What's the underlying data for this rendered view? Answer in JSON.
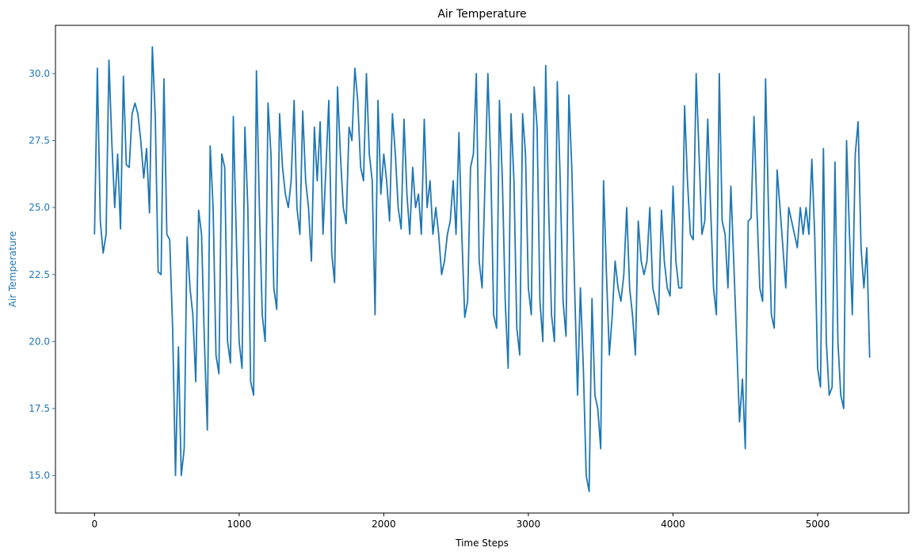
{
  "chart_data": {
    "type": "line",
    "title": "Air Temperature",
    "xlabel": "Time Steps",
    "ylabel": "Air Temperature",
    "xlim": [
      -270,
      5630
    ],
    "ylim": [
      13.6,
      31.8
    ],
    "x_ticks": [
      0,
      1000,
      2000,
      3000,
      4000,
      5000
    ],
    "y_ticks": [
      15.0,
      17.5,
      20.0,
      22.5,
      25.0,
      27.5,
      30.0
    ],
    "y_tick_labels": [
      "15.0",
      "17.5",
      "20.0",
      "22.5",
      "25.0",
      "27.5",
      "30.0"
    ],
    "x_tick_labels": [
      "0",
      "1000",
      "2000",
      "3000",
      "4000",
      "5000"
    ],
    "grid": false,
    "legend": "none",
    "line_color": "#1f77b4",
    "ylabel_color": "#1f77b4",
    "series": [
      {
        "x": [
          0,
          20,
          40,
          60,
          80,
          100,
          120,
          140,
          160,
          180,
          200,
          220,
          240,
          260,
          280,
          300,
          320,
          340,
          360,
          380,
          400,
          420,
          440,
          460,
          480,
          500,
          520,
          540,
          560,
          580,
          600,
          620,
          640,
          660,
          680,
          700,
          720,
          740,
          760,
          780,
          800,
          820,
          840,
          860,
          880,
          900,
          920,
          940,
          960,
          980,
          1000,
          1020,
          1040,
          1060,
          1080,
          1100,
          1120,
          1140,
          1160,
          1180,
          1200,
          1220,
          1240,
          1260,
          1280,
          1300,
          1320,
          1340,
          1360,
          1380,
          1400,
          1420,
          1440,
          1460,
          1480,
          1500,
          1520,
          1540,
          1560,
          1580,
          1600,
          1620,
          1640,
          1660,
          1680,
          1700,
          1720,
          1740,
          1760,
          1780,
          1800,
          1820,
          1840,
          1860,
          1880,
          1900,
          1920,
          1940,
          1960,
          1980,
          2000,
          2020,
          2040,
          2060,
          2080,
          2100,
          2120,
          2140,
          2160,
          2180,
          2200,
          2220,
          2240,
          2260,
          2280,
          2300,
          2320,
          2340,
          2360,
          2380,
          2400,
          2420,
          2440,
          2460,
          2480,
          2500,
          2520,
          2540,
          2560,
          2580,
          2600,
          2620,
          2640,
          2660,
          2680,
          2700,
          2720,
          2740,
          2760,
          2780,
          2800,
          2820,
          2840,
          2860,
          2880,
          2900,
          2920,
          2940,
          2960,
          2980,
          3000,
          3020,
          3040,
          3060,
          3080,
          3100,
          3120,
          3140,
          3160,
          3180,
          3200,
          3220,
          3240,
          3260,
          3280,
          3300,
          3320,
          3340,
          3360,
          3380,
          3400,
          3420,
          3440,
          3460,
          3480,
          3500,
          3520,
          3540,
          3560,
          3580,
          3600,
          3620,
          3640,
          3660,
          3680,
          3700,
          3720,
          3740,
          3760,
          3780,
          3800,
          3820,
          3840,
          3860,
          3880,
          3900,
          3920,
          3940,
          3960,
          3980,
          4000,
          4020,
          4040,
          4060,
          4080,
          4100,
          4120,
          4140,
          4160,
          4180,
          4200,
          4220,
          4240,
          4260,
          4280,
          4300,
          4320,
          4340,
          4360,
          4380,
          4400,
          4420,
          4440,
          4460,
          4480,
          4500,
          4520,
          4540,
          4560,
          4580,
          4600,
          4620,
          4640,
          4660,
          4680,
          4700,
          4720,
          4740,
          4760,
          4780,
          4800,
          4820,
          4840,
          4860,
          4880,
          4900,
          4920,
          4940,
          4960,
          4980,
          5000,
          5020,
          5040,
          5060,
          5080,
          5100,
          5120,
          5140,
          5160,
          5180,
          5200,
          5220,
          5240,
          5260,
          5280,
          5300,
          5320,
          5340,
          5360
        ],
        "y": [
          24.0,
          30.2,
          24.5,
          23.3,
          24.0,
          30.5,
          27.4,
          25.0,
          27.0,
          24.2,
          29.9,
          26.6,
          26.5,
          28.5,
          28.9,
          28.5,
          27.5,
          26.1,
          27.2,
          24.8,
          31.0,
          28.4,
          22.6,
          22.5,
          29.8,
          24.0,
          23.8,
          20.5,
          15.0,
          19.8,
          15.0,
          16.0,
          23.9,
          22.0,
          21.0,
          18.5,
          24.9,
          24.0,
          20.0,
          16.7,
          27.3,
          25.0,
          19.5,
          18.8,
          27.0,
          26.5,
          20.0,
          19.2,
          28.4,
          24.0,
          20.0,
          19.0,
          28.0,
          25.0,
          18.5,
          18.0,
          30.1,
          25.0,
          21.0,
          20.0,
          28.9,
          27.0,
          22.0,
          21.2,
          28.5,
          26.5,
          25.5,
          25.0,
          26.0,
          29.0,
          25.0,
          24.0,
          28.6,
          26.0,
          25.0,
          23.0,
          28.0,
          26.0,
          28.2,
          24.0,
          26.5,
          29.0,
          23.3,
          22.2,
          29.5,
          27.0,
          25.0,
          24.4,
          28.0,
          27.5,
          30.2,
          29.0,
          26.5,
          26.0,
          30.0,
          27.0,
          26.0,
          21.0,
          29.0,
          25.5,
          27.0,
          26.0,
          24.5,
          28.5,
          27.0,
          25.0,
          24.2,
          28.3,
          25.5,
          24.0,
          26.5,
          25.0,
          25.5,
          24.0,
          28.3,
          25.0,
          26.0,
          24.0,
          25.0,
          24.0,
          22.5,
          23.0,
          24.0,
          24.5,
          26.0,
          24.0,
          27.8,
          24.0,
          20.9,
          21.5,
          26.5,
          27.0,
          30.0,
          23.0,
          22.0,
          26.0,
          30.0,
          26.5,
          21.0,
          20.5,
          29.0,
          26.0,
          21.5,
          19.0,
          28.5,
          26.0,
          20.5,
          19.5,
          28.5,
          27.0,
          22.0,
          21.0,
          29.5,
          28.0,
          21.5,
          20.0,
          30.3,
          25.0,
          21.0,
          20.0,
          29.7,
          26.0,
          21.5,
          20.2,
          29.2,
          26.5,
          22.0,
          18.0,
          22.0,
          19.0,
          15.0,
          14.4,
          21.6,
          18.0,
          17.5,
          16.0,
          26.0,
          22.5,
          19.5,
          21.0,
          23.0,
          22.0,
          21.5,
          22.5,
          25.0,
          22.0,
          21.0,
          19.5,
          24.5,
          23.0,
          22.5,
          23.0,
          25.0,
          22.0,
          21.5,
          21.0,
          24.9,
          23.0,
          22.0,
          21.7,
          25.8,
          23.0,
          22.0,
          22.0,
          28.8,
          26.0,
          24.0,
          23.8,
          30.0,
          27.0,
          24.0,
          24.5,
          28.3,
          25.0,
          22.0,
          21.0,
          30.0,
          24.5,
          24.0,
          22.0,
          25.8,
          23.0,
          20.0,
          17.0,
          18.6,
          16.0,
          24.5,
          24.6,
          28.4,
          25.0,
          22.0,
          21.5,
          29.8,
          25.0,
          21.0,
          20.5,
          26.4,
          25.0,
          23.5,
          22.0,
          25.0,
          24.5,
          24.0,
          23.5,
          25.0,
          24.0,
          25.0,
          24.0,
          26.8,
          24.0,
          19.0,
          18.3,
          27.2,
          20.0,
          18.0,
          18.3,
          26.7,
          20.0,
          18.0,
          17.5,
          27.5,
          24.0,
          21.0,
          27.0,
          28.2,
          23.5,
          22.0,
          23.5,
          19.4
        ]
      }
    ]
  }
}
